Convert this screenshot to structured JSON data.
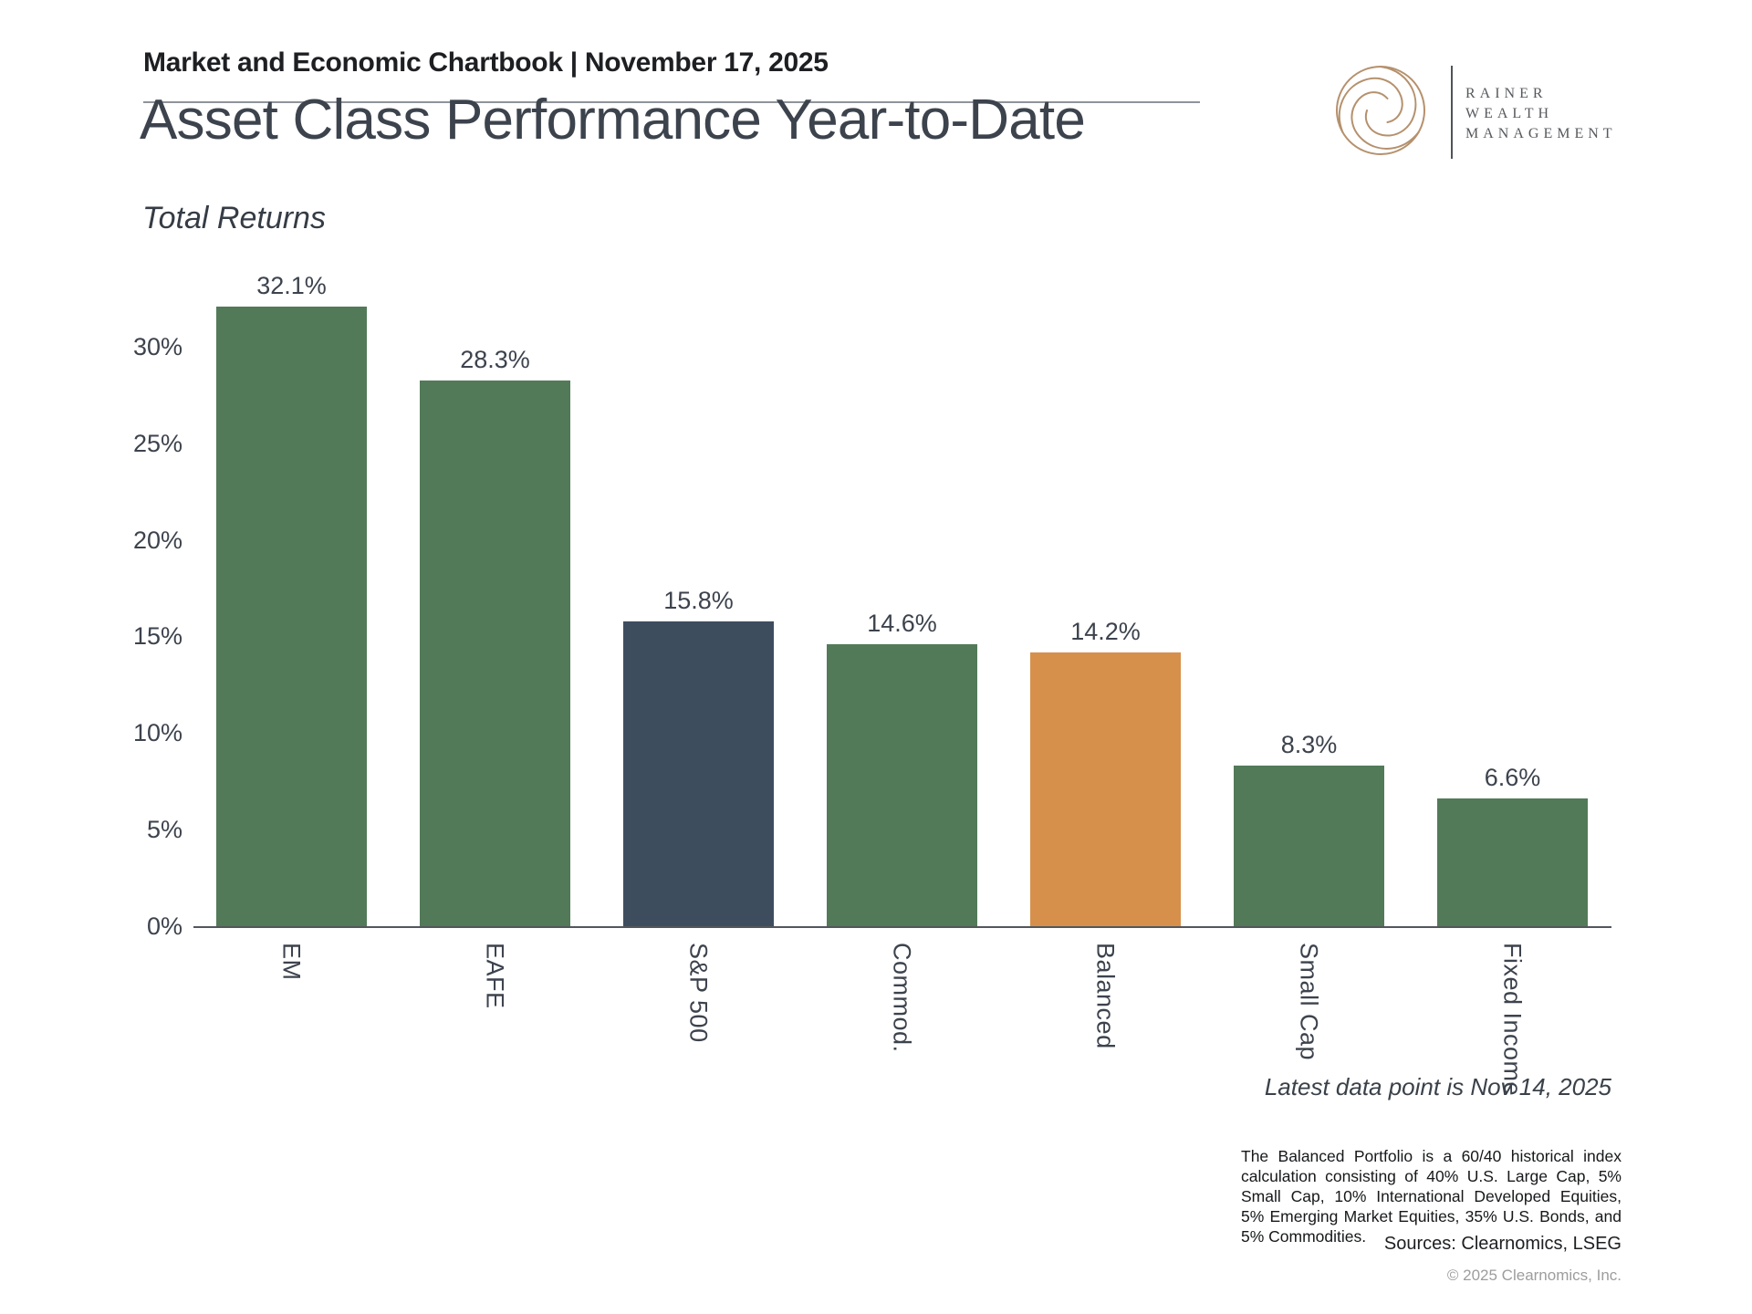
{
  "header": {
    "chartbook_title": "Market and Economic Chartbook | November 17, 2025",
    "logo": {
      "line1": "RAINER",
      "line2": "WEALTH",
      "line3": "MANAGEMENT"
    }
  },
  "title": "Asset Class Performance Year-to-Date",
  "subtitle": "Total Returns",
  "chart_data": {
    "type": "bar",
    "title": "Asset Class Performance Year-to-Date",
    "subtitle": "Total Returns",
    "categories": [
      "EM",
      "EAFE",
      "S&P 500",
      "Commod.",
      "Balanced",
      "Small Cap",
      "Fixed Income"
    ],
    "values": [
      32.1,
      28.3,
      15.8,
      14.6,
      14.2,
      8.3,
      6.6
    ],
    "value_labels": [
      "32.1%",
      "28.3%",
      "15.8%",
      "14.6%",
      "14.2%",
      "8.3%",
      "6.6%"
    ],
    "bar_colors": [
      "#527a58",
      "#527a58",
      "#3e4d5e",
      "#527a58",
      "#d6904c",
      "#527a58",
      "#527a58"
    ],
    "y_ticks": [
      "0%",
      "5%",
      "10%",
      "15%",
      "20%",
      "25%",
      "30%"
    ],
    "y_tick_values": [
      0,
      5,
      10,
      15,
      20,
      25,
      30
    ],
    "ylim": [
      0,
      34
    ],
    "grid": false,
    "legend": "none",
    "xlabel": "",
    "ylabel": ""
  },
  "annotations": {
    "latest_data_note": "Latest data point is Nov 14, 2025"
  },
  "footer": {
    "footnote": "The Balanced Portfolio is a 60/40 historical index calculation consisting of 40% U.S. Large Cap, 5% Small Cap, 10% International Developed Equities, 5% Emerging Market Equities, 35% U.S. Bonds, and 5% Commodities.",
    "sources": "Sources: Clearnomics, LSEG",
    "copyright": "© 2025 Clearnomics, Inc."
  },
  "colors": {
    "bar_green": "#527a58",
    "bar_navy": "#3e4d5e",
    "bar_orange": "#d6904c",
    "logo_tan": "#b5916d",
    "axis_gray": "#53565c",
    "label_slate": "#3d434d",
    "copyright_gray": "#9d9d9d"
  }
}
